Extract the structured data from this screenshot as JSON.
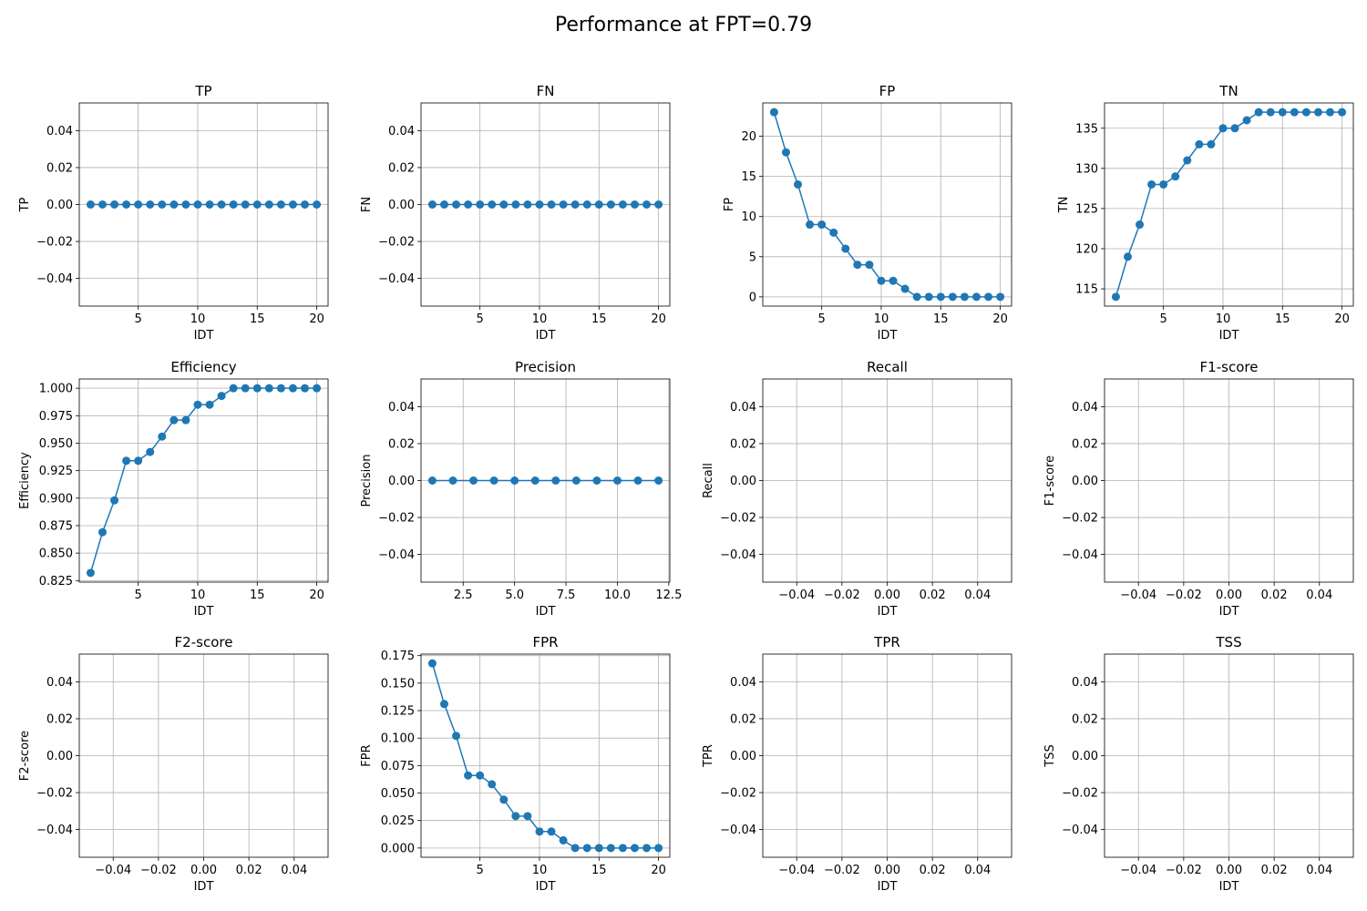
{
  "figure": {
    "title": "Performance at FPT=0.79"
  },
  "colors": {
    "series": "#1f77b4",
    "grid": "#b0b0b0",
    "axis": "#000000"
  },
  "chart_data": [
    {
      "type": "line",
      "title": "TP",
      "xlabel": "IDT",
      "ylabel": "TP",
      "x": [
        1,
        2,
        3,
        4,
        5,
        6,
        7,
        8,
        9,
        10,
        11,
        12,
        13,
        14,
        15,
        16,
        17,
        18,
        19,
        20
      ],
      "series": [
        {
          "values": [
            0,
            0,
            0,
            0,
            0,
            0,
            0,
            0,
            0,
            0,
            0,
            0,
            0,
            0,
            0,
            0,
            0,
            0,
            0,
            0
          ]
        }
      ],
      "xlim": [
        0.05,
        20.95
      ],
      "ylim": [
        -0.055,
        0.055
      ],
      "xticks": [
        5,
        10,
        15,
        20
      ],
      "xtick_labels": [
        "5",
        "10",
        "15",
        "20"
      ],
      "yticks": [
        -0.04,
        -0.02,
        0,
        0.02,
        0.04
      ],
      "ytick_labels": [
        "−0.04",
        "−0.02",
        "0.00",
        "0.02",
        "0.04"
      ],
      "grid": true
    },
    {
      "type": "line",
      "title": "FN",
      "xlabel": "IDT",
      "ylabel": "FN",
      "x": [
        1,
        2,
        3,
        4,
        5,
        6,
        7,
        8,
        9,
        10,
        11,
        12,
        13,
        14,
        15,
        16,
        17,
        18,
        19,
        20
      ],
      "series": [
        {
          "values": [
            0,
            0,
            0,
            0,
            0,
            0,
            0,
            0,
            0,
            0,
            0,
            0,
            0,
            0,
            0,
            0,
            0,
            0,
            0,
            0
          ]
        }
      ],
      "xlim": [
        0.05,
        20.95
      ],
      "ylim": [
        -0.055,
        0.055
      ],
      "xticks": [
        5,
        10,
        15,
        20
      ],
      "xtick_labels": [
        "5",
        "10",
        "15",
        "20"
      ],
      "yticks": [
        -0.04,
        -0.02,
        0,
        0.02,
        0.04
      ],
      "ytick_labels": [
        "−0.04",
        "−0.02",
        "0.00",
        "0.02",
        "0.04"
      ],
      "grid": true
    },
    {
      "type": "line",
      "title": "FP",
      "xlabel": "IDT",
      "ylabel": "FP",
      "x": [
        1,
        2,
        3,
        4,
        5,
        6,
        7,
        8,
        9,
        10,
        11,
        12,
        13,
        14,
        15,
        16,
        17,
        18,
        19,
        20
      ],
      "series": [
        {
          "values": [
            23,
            18,
            14,
            9,
            9,
            8,
            6,
            4,
            4,
            2,
            2,
            1,
            0,
            0,
            0,
            0,
            0,
            0,
            0,
            0
          ]
        }
      ],
      "xlim": [
        0.05,
        20.95
      ],
      "ylim": [
        -1.15,
        24.15
      ],
      "xticks": [
        5,
        10,
        15,
        20
      ],
      "xtick_labels": [
        "5",
        "10",
        "15",
        "20"
      ],
      "yticks": [
        0,
        5,
        10,
        15,
        20
      ],
      "ytick_labels": [
        "0",
        "5",
        "10",
        "15",
        "20"
      ],
      "grid": true
    },
    {
      "type": "line",
      "title": "TN",
      "xlabel": "IDT",
      "ylabel": "TN",
      "x": [
        1,
        2,
        3,
        4,
        5,
        6,
        7,
        8,
        9,
        10,
        11,
        12,
        13,
        14,
        15,
        16,
        17,
        18,
        19,
        20
      ],
      "series": [
        {
          "values": [
            114,
            119,
            123,
            128,
            128,
            129,
            131,
            133,
            133,
            135,
            135,
            136,
            137,
            137,
            137,
            137,
            137,
            137,
            137,
            137
          ]
        }
      ],
      "xlim": [
        0.05,
        20.95
      ],
      "ylim": [
        112.85,
        138.15
      ],
      "xticks": [
        5,
        10,
        15,
        20
      ],
      "xtick_labels": [
        "5",
        "10",
        "15",
        "20"
      ],
      "yticks": [
        115,
        120,
        125,
        130,
        135
      ],
      "ytick_labels": [
        "115",
        "120",
        "125",
        "130",
        "135"
      ],
      "grid": true
    },
    {
      "type": "line",
      "title": "Efficiency",
      "xlabel": "IDT",
      "ylabel": "Efficiency",
      "x": [
        1,
        2,
        3,
        4,
        5,
        6,
        7,
        8,
        9,
        10,
        11,
        12,
        13,
        14,
        15,
        16,
        17,
        18,
        19,
        20
      ],
      "series": [
        {
          "values": [
            0.832,
            0.869,
            0.898,
            0.934,
            0.934,
            0.942,
            0.956,
            0.971,
            0.971,
            0.985,
            0.985,
            0.993,
            1.0,
            1.0,
            1.0,
            1.0,
            1.0,
            1.0,
            1.0,
            1.0
          ]
        }
      ],
      "xlim": [
        0.05,
        20.95
      ],
      "ylim": [
        0.8236,
        1.0084
      ],
      "xticks": [
        5,
        10,
        15,
        20
      ],
      "xtick_labels": [
        "5",
        "10",
        "15",
        "20"
      ],
      "yticks": [
        0.825,
        0.85,
        0.875,
        0.9,
        0.925,
        0.95,
        0.975,
        1.0
      ],
      "ytick_labels": [
        "0.825",
        "0.850",
        "0.875",
        "0.900",
        "0.925",
        "0.950",
        "0.975",
        "1.000"
      ],
      "grid": true
    },
    {
      "type": "line",
      "title": "Precision",
      "xlabel": "IDT",
      "ylabel": "Precision",
      "x": [
        1,
        2,
        3,
        4,
        5,
        6,
        7,
        8,
        9,
        10,
        11,
        12
      ],
      "series": [
        {
          "values": [
            0,
            0,
            0,
            0,
            0,
            0,
            0,
            0,
            0,
            0,
            0,
            0
          ]
        }
      ],
      "xlim": [
        0.45,
        12.55
      ],
      "ylim": [
        -0.055,
        0.055
      ],
      "xticks": [
        2.5,
        5,
        7.5,
        10,
        12.5
      ],
      "xtick_labels": [
        "2.5",
        "5.0",
        "7.5",
        "10.0",
        "12.5"
      ],
      "yticks": [
        -0.04,
        -0.02,
        0,
        0.02,
        0.04
      ],
      "ytick_labels": [
        "−0.04",
        "−0.02",
        "0.00",
        "0.02",
        "0.04"
      ],
      "grid": true
    },
    {
      "type": "line",
      "title": "Recall",
      "xlabel": "IDT",
      "ylabel": "Recall",
      "x": [],
      "series": [
        {
          "values": []
        }
      ],
      "xlim": [
        -0.055,
        0.055
      ],
      "ylim": [
        -0.055,
        0.055
      ],
      "xticks": [
        -0.04,
        -0.02,
        0,
        0.02,
        0.04
      ],
      "xtick_labels": [
        "−0.04",
        "−0.02",
        "0.00",
        "0.02",
        "0.04"
      ],
      "yticks": [
        -0.04,
        -0.02,
        0,
        0.02,
        0.04
      ],
      "ytick_labels": [
        "−0.04",
        "−0.02",
        "0.00",
        "0.02",
        "0.04"
      ],
      "grid": true
    },
    {
      "type": "line",
      "title": "F1-score",
      "xlabel": "IDT",
      "ylabel": "F1-score",
      "x": [],
      "series": [
        {
          "values": []
        }
      ],
      "xlim": [
        -0.055,
        0.055
      ],
      "ylim": [
        -0.055,
        0.055
      ],
      "xticks": [
        -0.04,
        -0.02,
        0,
        0.02,
        0.04
      ],
      "xtick_labels": [
        "−0.04",
        "−0.02",
        "0.00",
        "0.02",
        "0.04"
      ],
      "yticks": [
        -0.04,
        -0.02,
        0,
        0.02,
        0.04
      ],
      "ytick_labels": [
        "−0.04",
        "−0.02",
        "0.00",
        "0.02",
        "0.04"
      ],
      "grid": true
    },
    {
      "type": "line",
      "title": "F2-score",
      "xlabel": "IDT",
      "ylabel": "F2-score",
      "x": [],
      "series": [
        {
          "values": []
        }
      ],
      "xlim": [
        -0.055,
        0.055
      ],
      "ylim": [
        -0.055,
        0.055
      ],
      "xticks": [
        -0.04,
        -0.02,
        0,
        0.02,
        0.04
      ],
      "xtick_labels": [
        "−0.04",
        "−0.02",
        "0.00",
        "0.02",
        "0.04"
      ],
      "yticks": [
        -0.04,
        -0.02,
        0,
        0.02,
        0.04
      ],
      "ytick_labels": [
        "−0.04",
        "−0.02",
        "0.00",
        "0.02",
        "0.04"
      ],
      "grid": true
    },
    {
      "type": "line",
      "title": "FPR",
      "xlabel": "IDT",
      "ylabel": "FPR",
      "x": [
        1,
        2,
        3,
        4,
        5,
        6,
        7,
        8,
        9,
        10,
        11,
        12,
        13,
        14,
        15,
        16,
        17,
        18,
        19,
        20
      ],
      "series": [
        {
          "values": [
            0.168,
            0.131,
            0.102,
            0.066,
            0.066,
            0.058,
            0.044,
            0.029,
            0.029,
            0.015,
            0.015,
            0.007,
            0,
            0,
            0,
            0,
            0,
            0,
            0,
            0
          ]
        }
      ],
      "xlim": [
        0.05,
        20.95
      ],
      "ylim": [
        -0.0084,
        0.1764
      ],
      "xticks": [
        5,
        10,
        15,
        20
      ],
      "xtick_labels": [
        "5",
        "10",
        "15",
        "20"
      ],
      "yticks": [
        0,
        0.025,
        0.05,
        0.075,
        0.1,
        0.125,
        0.15,
        0.175
      ],
      "ytick_labels": [
        "0.000",
        "0.025",
        "0.050",
        "0.075",
        "0.100",
        "0.125",
        "0.150",
        "0.175"
      ],
      "grid": true
    },
    {
      "type": "line",
      "title": "TPR",
      "xlabel": "IDT",
      "ylabel": "TPR",
      "x": [],
      "series": [
        {
          "values": []
        }
      ],
      "xlim": [
        -0.055,
        0.055
      ],
      "ylim": [
        -0.055,
        0.055
      ],
      "xticks": [
        -0.04,
        -0.02,
        0,
        0.02,
        0.04
      ],
      "xtick_labels": [
        "−0.04",
        "−0.02",
        "0.00",
        "0.02",
        "0.04"
      ],
      "yticks": [
        -0.04,
        -0.02,
        0,
        0.02,
        0.04
      ],
      "ytick_labels": [
        "−0.04",
        "−0.02",
        "0.00",
        "0.02",
        "0.04"
      ],
      "grid": true
    },
    {
      "type": "line",
      "title": "TSS",
      "xlabel": "IDT",
      "ylabel": "TSS",
      "x": [],
      "series": [
        {
          "values": []
        }
      ],
      "xlim": [
        -0.055,
        0.055
      ],
      "ylim": [
        -0.055,
        0.055
      ],
      "xticks": [
        -0.04,
        -0.02,
        0,
        0.02,
        0.04
      ],
      "xtick_labels": [
        "−0.04",
        "−0.02",
        "0.00",
        "0.02",
        "0.04"
      ],
      "yticks": [
        -0.04,
        -0.02,
        0,
        0.02,
        0.04
      ],
      "ytick_labels": [
        "−0.04",
        "−0.02",
        "0.00",
        "0.02",
        "0.04"
      ],
      "grid": true
    }
  ]
}
